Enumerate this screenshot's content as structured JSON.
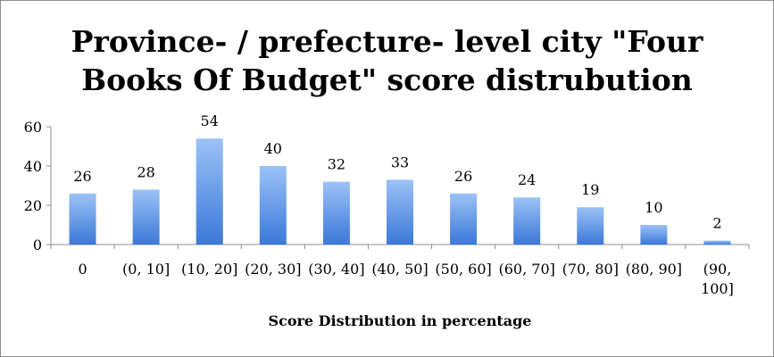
{
  "chart_data": {
    "type": "bar",
    "title_lines": [
      "Province- / prefecture- level city \"Four",
      "Books Of Budget\" score distrubution"
    ],
    "xlabel": "Score Distribution in percentage",
    "ylabel": "",
    "ylim": [
      0,
      60
    ],
    "yticks": [
      "0",
      "20",
      "40",
      "60"
    ],
    "grid": false,
    "legend": "none",
    "bar_color": "#4f86d9",
    "categories": [
      "0",
      "(0, 10]",
      "(10, 20]",
      "(20, 30]",
      "(30, 40]",
      "(40, 50]",
      "(50, 60]",
      "(60, 70]",
      "(70, 80]",
      "(80, 90]",
      "(90, 100]"
    ],
    "category_lines": [
      [
        "0"
      ],
      [
        "(0, 10]"
      ],
      [
        "(10, 20]"
      ],
      [
        "(20, 30]"
      ],
      [
        "(30, 40]"
      ],
      [
        "(40, 50]"
      ],
      [
        "(50, 60]"
      ],
      [
        "(60, 70]"
      ],
      [
        "(70, 80]"
      ],
      [
        "(80, 90]"
      ],
      [
        "(90,",
        "100]"
      ]
    ],
    "values": [
      26,
      28,
      54,
      40,
      32,
      33,
      26,
      24,
      19,
      10,
      2
    ],
    "data_labels": [
      "26",
      "28",
      "54",
      "40",
      "32",
      "33",
      "26",
      "24",
      "19",
      "10",
      "2"
    ]
  }
}
